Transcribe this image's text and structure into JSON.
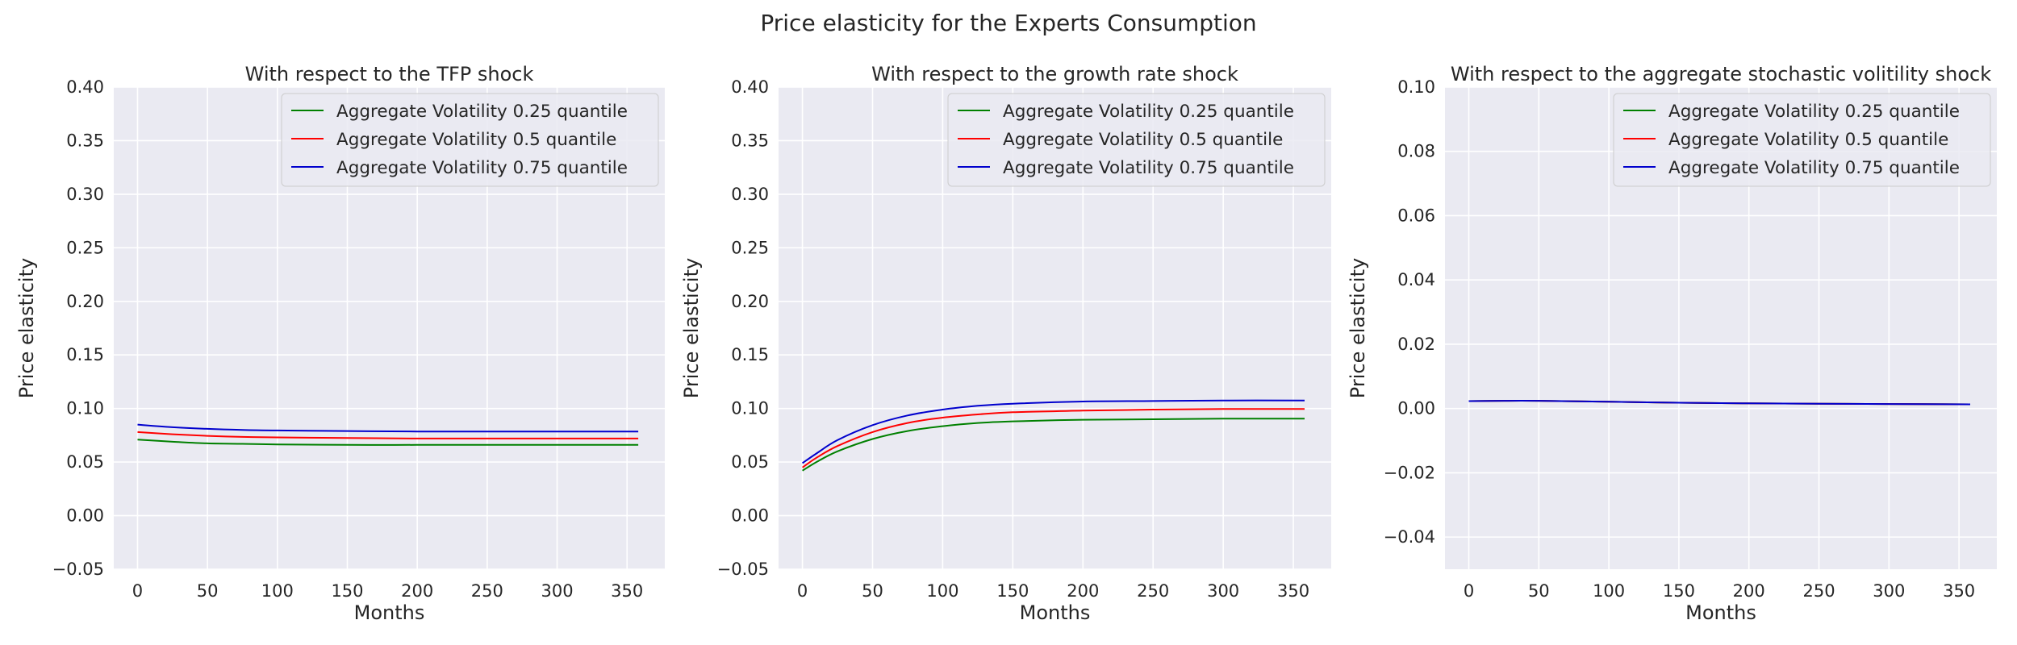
{
  "figure": {
    "title": "Price elasticity for the Experts Consumption"
  },
  "colors": {
    "background": "#eaeaf2",
    "grid": "#ffffff",
    "q25": "#008000",
    "q50": "#ff0000",
    "q75": "#0000cd"
  },
  "chart_data": [
    {
      "type": "line",
      "title": "With respect to the TFP shock",
      "xlabel": "Months",
      "ylabel": "Price elasticity",
      "xlim": [
        -17,
        377
      ],
      "ylim": [
        -0.05,
        0.4
      ],
      "xticks": [
        0,
        50,
        100,
        150,
        200,
        250,
        300,
        350
      ],
      "xtick_labels": [
        "0",
        "50",
        "100",
        "150",
        "200",
        "250",
        "300",
        "350"
      ],
      "yticks": [
        -0.05,
        0.0,
        0.05,
        0.1,
        0.15,
        0.2,
        0.25,
        0.3,
        0.35,
        0.4
      ],
      "ytick_labels": [
        "−0.05",
        "0.00",
        "0.05",
        "0.10",
        "0.15",
        "0.20",
        "0.25",
        "0.30",
        "0.35",
        "0.40"
      ],
      "grid": true,
      "legend_position": "top-right",
      "series": [
        {
          "name": "Aggregate Volatility 0.25 quantile",
          "color": "#008000",
          "x": [
            0,
            25,
            50,
            75,
            100,
            150,
            200,
            250,
            300,
            358
          ],
          "y": [
            0.071,
            0.069,
            0.0675,
            0.067,
            0.0665,
            0.066,
            0.066,
            0.066,
            0.066,
            0.066
          ]
        },
        {
          "name": "Aggregate Volatility 0.5 quantile",
          "color": "#ff0000",
          "x": [
            0,
            25,
            50,
            75,
            100,
            150,
            200,
            250,
            300,
            358
          ],
          "y": [
            0.078,
            0.076,
            0.0745,
            0.0735,
            0.073,
            0.0725,
            0.072,
            0.072,
            0.072,
            0.072
          ]
        },
        {
          "name": "Aggregate Volatility 0.75 quantile",
          "color": "#0000cd",
          "x": [
            0,
            25,
            50,
            75,
            100,
            150,
            200,
            250,
            300,
            358
          ],
          "y": [
            0.085,
            0.0825,
            0.081,
            0.08,
            0.0795,
            0.079,
            0.0785,
            0.0785,
            0.0785,
            0.0785
          ]
        }
      ]
    },
    {
      "type": "line",
      "title": "With respect to the growth rate shock",
      "xlabel": "Months",
      "ylabel": "Price elasticity",
      "xlim": [
        -17,
        377
      ],
      "ylim": [
        -0.05,
        0.4
      ],
      "xticks": [
        0,
        50,
        100,
        150,
        200,
        250,
        300,
        350
      ],
      "xtick_labels": [
        "0",
        "50",
        "100",
        "150",
        "200",
        "250",
        "300",
        "350"
      ],
      "yticks": [
        -0.05,
        0.0,
        0.05,
        0.1,
        0.15,
        0.2,
        0.25,
        0.3,
        0.35,
        0.4
      ],
      "ytick_labels": [
        "−0.05",
        "0.00",
        "0.05",
        "0.10",
        "0.15",
        "0.20",
        "0.25",
        "0.30",
        "0.35",
        "0.40"
      ],
      "grid": true,
      "legend_position": "top-right",
      "series": [
        {
          "name": "Aggregate Volatility 0.25 quantile",
          "color": "#008000",
          "x": [
            0,
            10,
            25,
            50,
            75,
            100,
            125,
            150,
            200,
            250,
            300,
            358
          ],
          "y": [
            0.042,
            0.05,
            0.06,
            0.0715,
            0.079,
            0.0835,
            0.0865,
            0.088,
            0.0895,
            0.09,
            0.0905,
            0.0905
          ]
        },
        {
          "name": "Aggregate Volatility 0.5 quantile",
          "color": "#ff0000",
          "x": [
            0,
            10,
            25,
            50,
            75,
            100,
            125,
            150,
            200,
            250,
            300,
            358
          ],
          "y": [
            0.045,
            0.054,
            0.065,
            0.078,
            0.0865,
            0.0915,
            0.0945,
            0.0965,
            0.098,
            0.099,
            0.0995,
            0.0995
          ]
        },
        {
          "name": "Aggregate Volatility 0.75 quantile",
          "color": "#0000cd",
          "x": [
            0,
            10,
            25,
            50,
            75,
            100,
            125,
            150,
            200,
            250,
            300,
            358
          ],
          "y": [
            0.049,
            0.058,
            0.0705,
            0.0845,
            0.0935,
            0.099,
            0.1025,
            0.1045,
            0.1065,
            0.107,
            0.1075,
            0.1075
          ]
        }
      ]
    },
    {
      "type": "line",
      "title": "With respect to the aggregate stochastic volitility shock",
      "xlabel": "Months",
      "ylabel": "Price elasticity",
      "xlim": [
        -17,
        377
      ],
      "ylim": [
        -0.05,
        0.1
      ],
      "xticks": [
        0,
        50,
        100,
        150,
        200,
        250,
        300,
        350
      ],
      "xtick_labels": [
        "0",
        "50",
        "100",
        "150",
        "200",
        "250",
        "300",
        "350"
      ],
      "yticks": [
        -0.04,
        -0.02,
        0.0,
        0.02,
        0.04,
        0.06,
        0.08,
        0.1
      ],
      "ytick_labels": [
        "−0.04",
        "−0.02",
        "0.00",
        "0.02",
        "0.04",
        "0.06",
        "0.08",
        "0.10"
      ],
      "grid": true,
      "legend_position": "top-right",
      "series": [
        {
          "name": "Aggregate Volatility 0.25 quantile",
          "color": "#008000",
          "x": [
            0,
            25,
            50,
            100,
            150,
            200,
            250,
            300,
            358
          ],
          "y": [
            0.0023,
            0.0024,
            0.0024,
            0.0021,
            0.0018,
            0.0016,
            0.0015,
            0.0014,
            0.0013
          ]
        },
        {
          "name": "Aggregate Volatility 0.5 quantile",
          "color": "#ff0000",
          "x": [
            0,
            25,
            50,
            100,
            150,
            200,
            250,
            300,
            358
          ],
          "y": [
            0.0023,
            0.0024,
            0.0024,
            0.0021,
            0.0018,
            0.0016,
            0.0015,
            0.0014,
            0.0013
          ]
        },
        {
          "name": "Aggregate Volatility 0.75 quantile",
          "color": "#0000cd",
          "x": [
            0,
            25,
            50,
            100,
            150,
            200,
            250,
            300,
            358
          ],
          "y": [
            0.0023,
            0.0024,
            0.0024,
            0.0021,
            0.0018,
            0.0016,
            0.0015,
            0.0014,
            0.0013
          ]
        }
      ]
    }
  ]
}
